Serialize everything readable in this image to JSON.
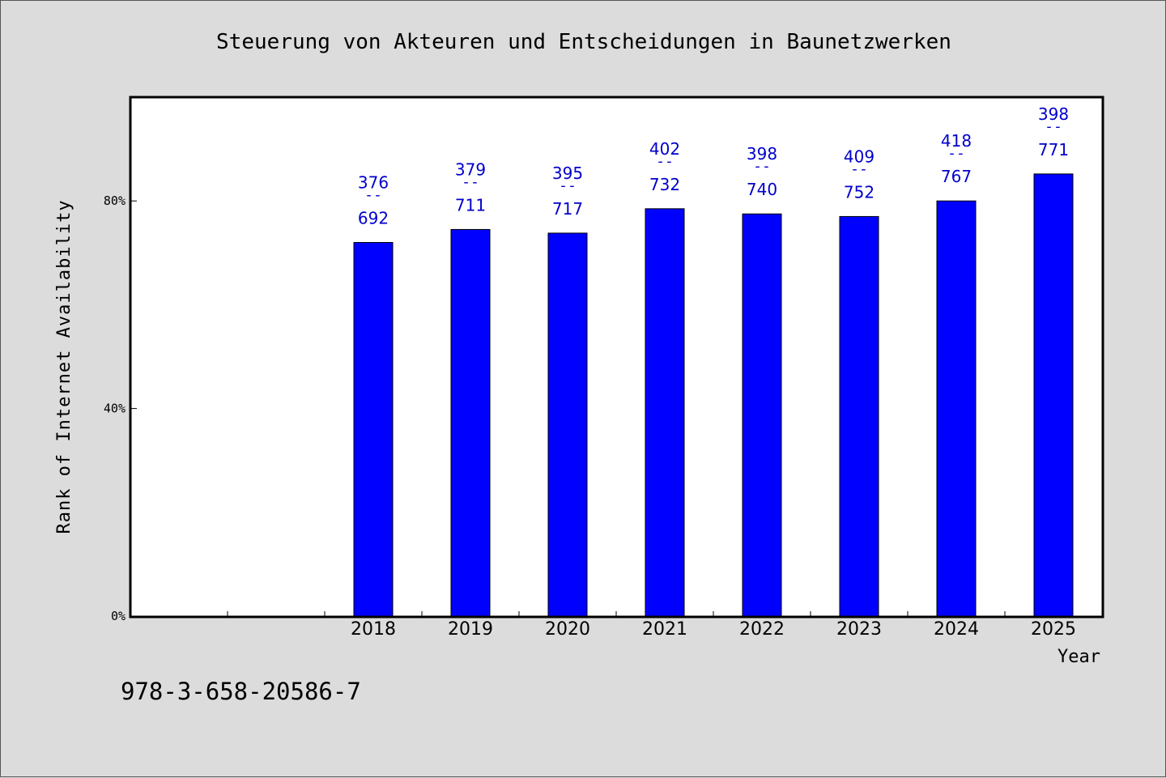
{
  "chart_data": {
    "type": "bar",
    "title": "Steuerung von Akteuren und Entscheidungen in Baunetzwerken",
    "xlabel": "Year",
    "ylabel": "Rank of Internet Availability",
    "categories": [
      "2018",
      "2019",
      "2020",
      "2021",
      "2022",
      "2023",
      "2024",
      "2025"
    ],
    "values": [
      0.72,
      0.745,
      0.738,
      0.785,
      0.775,
      0.77,
      0.8,
      0.852
    ],
    "data_labels": [
      {
        "top": "376",
        "sep": "--",
        "bottom": "692"
      },
      {
        "top": "379",
        "sep": "--",
        "bottom": "711"
      },
      {
        "top": "395",
        "sep": "--",
        "bottom": "717"
      },
      {
        "top": "402",
        "sep": "--",
        "bottom": "732"
      },
      {
        "top": "398",
        "sep": "--",
        "bottom": "740"
      },
      {
        "top": "409",
        "sep": "--",
        "bottom": "752"
      },
      {
        "top": "418",
        "sep": "--",
        "bottom": "767"
      },
      {
        "top": "398",
        "sep": "--",
        "bottom": "771"
      }
    ],
    "yticks": [
      {
        "value": 0,
        "label": "0%"
      },
      {
        "value": 0.4,
        "label": "40%"
      },
      {
        "value": 0.8,
        "label": "80%"
      }
    ],
    "ylim": [
      0,
      1
    ],
    "empty_leading_slots": 2,
    "grid": false,
    "bar_color": "#0000ff",
    "label_color": "#0000cc",
    "plot_background": "#ffffff",
    "figure_background": "#dcdcdc"
  },
  "footer_note": "978-3-658-20586-7"
}
